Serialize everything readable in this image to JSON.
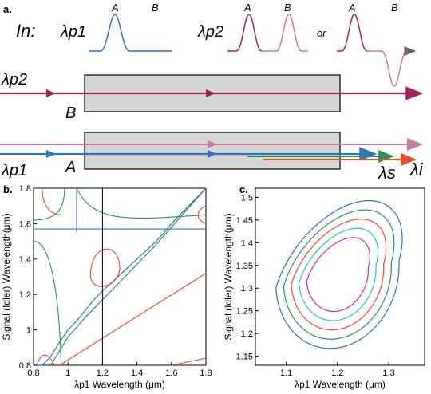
{
  "panel_a": {
    "panel_label": "a.",
    "input_label": "In:",
    "pump1_label": "λp1",
    "pump2_label": "λp2",
    "or_label": "or",
    "pulse_A": "A",
    "pulse_B": "B",
    "signal_label": "λs",
    "idler_label": "λi",
    "waveguide_A": "A",
    "waveguide_B": "B",
    "colors": {
      "pump1": "#2a74c0",
      "pump2": "#a3245c",
      "pump2_light": "#c97a9e",
      "signal": "#ee4a2e",
      "idler": "#29945a",
      "waveguide_fill": "#d6d6d6"
    }
  },
  "panel_b": {
    "panel_label": "b.",
    "xlabel": "λp1 Wavelength (μm)",
    "ylabel": "Signal (Idler) Wavelength(μm)",
    "xticks": [
      "0.8",
      "1",
      "1.2",
      "1.4",
      "1.6",
      "1.8"
    ],
    "yticks": [
      "0.8",
      "1",
      "1.2",
      "1.4",
      "1.6",
      "1.8"
    ],
    "chart_data": {
      "type": "line",
      "xlim": [
        0.8,
        1.8
      ],
      "ylim": [
        0.8,
        1.8
      ],
      "vertical_marker_x": 1.2,
      "series": [
        {
          "color": "#2a74c0",
          "x": [
            0.8,
            0.85,
            0.9,
            0.95,
            1.0,
            1.05,
            1.1,
            1.15,
            1.2,
            1.3,
            1.4,
            1.5,
            1.55,
            1.6,
            1.7,
            1.8
          ],
          "y": [
            0.8,
            0.8,
            0.85,
            0.93,
            1.0,
            1.05,
            1.11,
            1.17,
            1.22,
            1.31,
            1.4,
            1.49,
            1.54,
            1.6,
            1.7,
            1.8
          ]
        },
        {
          "color": "#29945a",
          "x": [
            0.9,
            0.95,
            1.0,
            1.1,
            1.2,
            1.3,
            1.4,
            1.5,
            1.6,
            1.7,
            1.8
          ],
          "y": [
            0.8,
            0.88,
            0.96,
            1.07,
            1.17,
            1.27,
            1.37,
            1.47,
            1.58,
            1.69,
            1.8
          ]
        },
        {
          "color": "#ee4a2e",
          "x": [
            0.95,
            1.8
          ],
          "y": [
            0.8,
            1.32
          ]
        }
      ]
    }
  },
  "panel_c": {
    "panel_label": "c.",
    "xlabel": "λp1 Wavelength (μm)",
    "ylabel": "Signal (Idler) Wavelength(μm)",
    "xticks": [
      "1.1",
      "1.2",
      "1.3"
    ],
    "yticks": [
      "1.15",
      "1.2",
      "1.25",
      "1.3",
      "1.35",
      "1.4",
      "1.45",
      "1.5"
    ],
    "chart_data": {
      "type": "line",
      "xlim": [
        1.04,
        1.37
      ],
      "ylim": [
        1.13,
        1.52
      ],
      "series": [
        {
          "color": "#2a74c0",
          "cx": 1.2,
          "cy": 1.33,
          "rx": 0.12,
          "ry": 0.16
        },
        {
          "color": "#29945a",
          "cx": 1.2,
          "cy": 1.33,
          "rx": 0.105,
          "ry": 0.14
        },
        {
          "color": "#ee4a2e",
          "cx": 1.2,
          "cy": 1.33,
          "rx": 0.09,
          "ry": 0.12
        },
        {
          "color": "#25c5c5",
          "cx": 1.2,
          "cy": 1.33,
          "rx": 0.075,
          "ry": 0.1
        },
        {
          "color": "#c42ac4",
          "cx": 1.2,
          "cy": 1.33,
          "rx": 0.06,
          "ry": 0.08
        }
      ]
    }
  }
}
